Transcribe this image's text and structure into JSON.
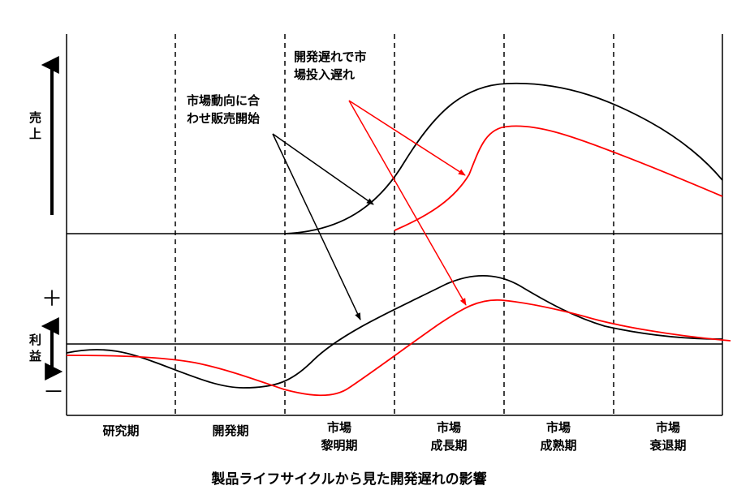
{
  "axis_labels": {
    "sales": [
      "売",
      "上"
    ],
    "profit": [
      "利",
      "益"
    ],
    "plus": "＋",
    "minus": "－"
  },
  "phases": [
    {
      "id": "research",
      "lines": [
        "研究期"
      ]
    },
    {
      "id": "development",
      "lines": [
        "開発期"
      ]
    },
    {
      "id": "dawn",
      "lines": [
        "市場",
        "黎明期"
      ]
    },
    {
      "id": "growth",
      "lines": [
        "市場",
        "成長期"
      ]
    },
    {
      "id": "maturity",
      "lines": [
        "市場",
        "成熟期"
      ]
    },
    {
      "id": "decline",
      "lines": [
        "市場",
        "衰退期"
      ]
    }
  ],
  "annotations": {
    "on_time": [
      "市場動向に合",
      "わせ販売開始"
    ],
    "delayed": [
      "開発遅れで市",
      "場投入遅れ"
    ]
  },
  "caption": "製品ライフサイクルから見た開発遅れの影響",
  "colors": {
    "on_time": "#000000",
    "delayed": "#ff0000"
  }
}
